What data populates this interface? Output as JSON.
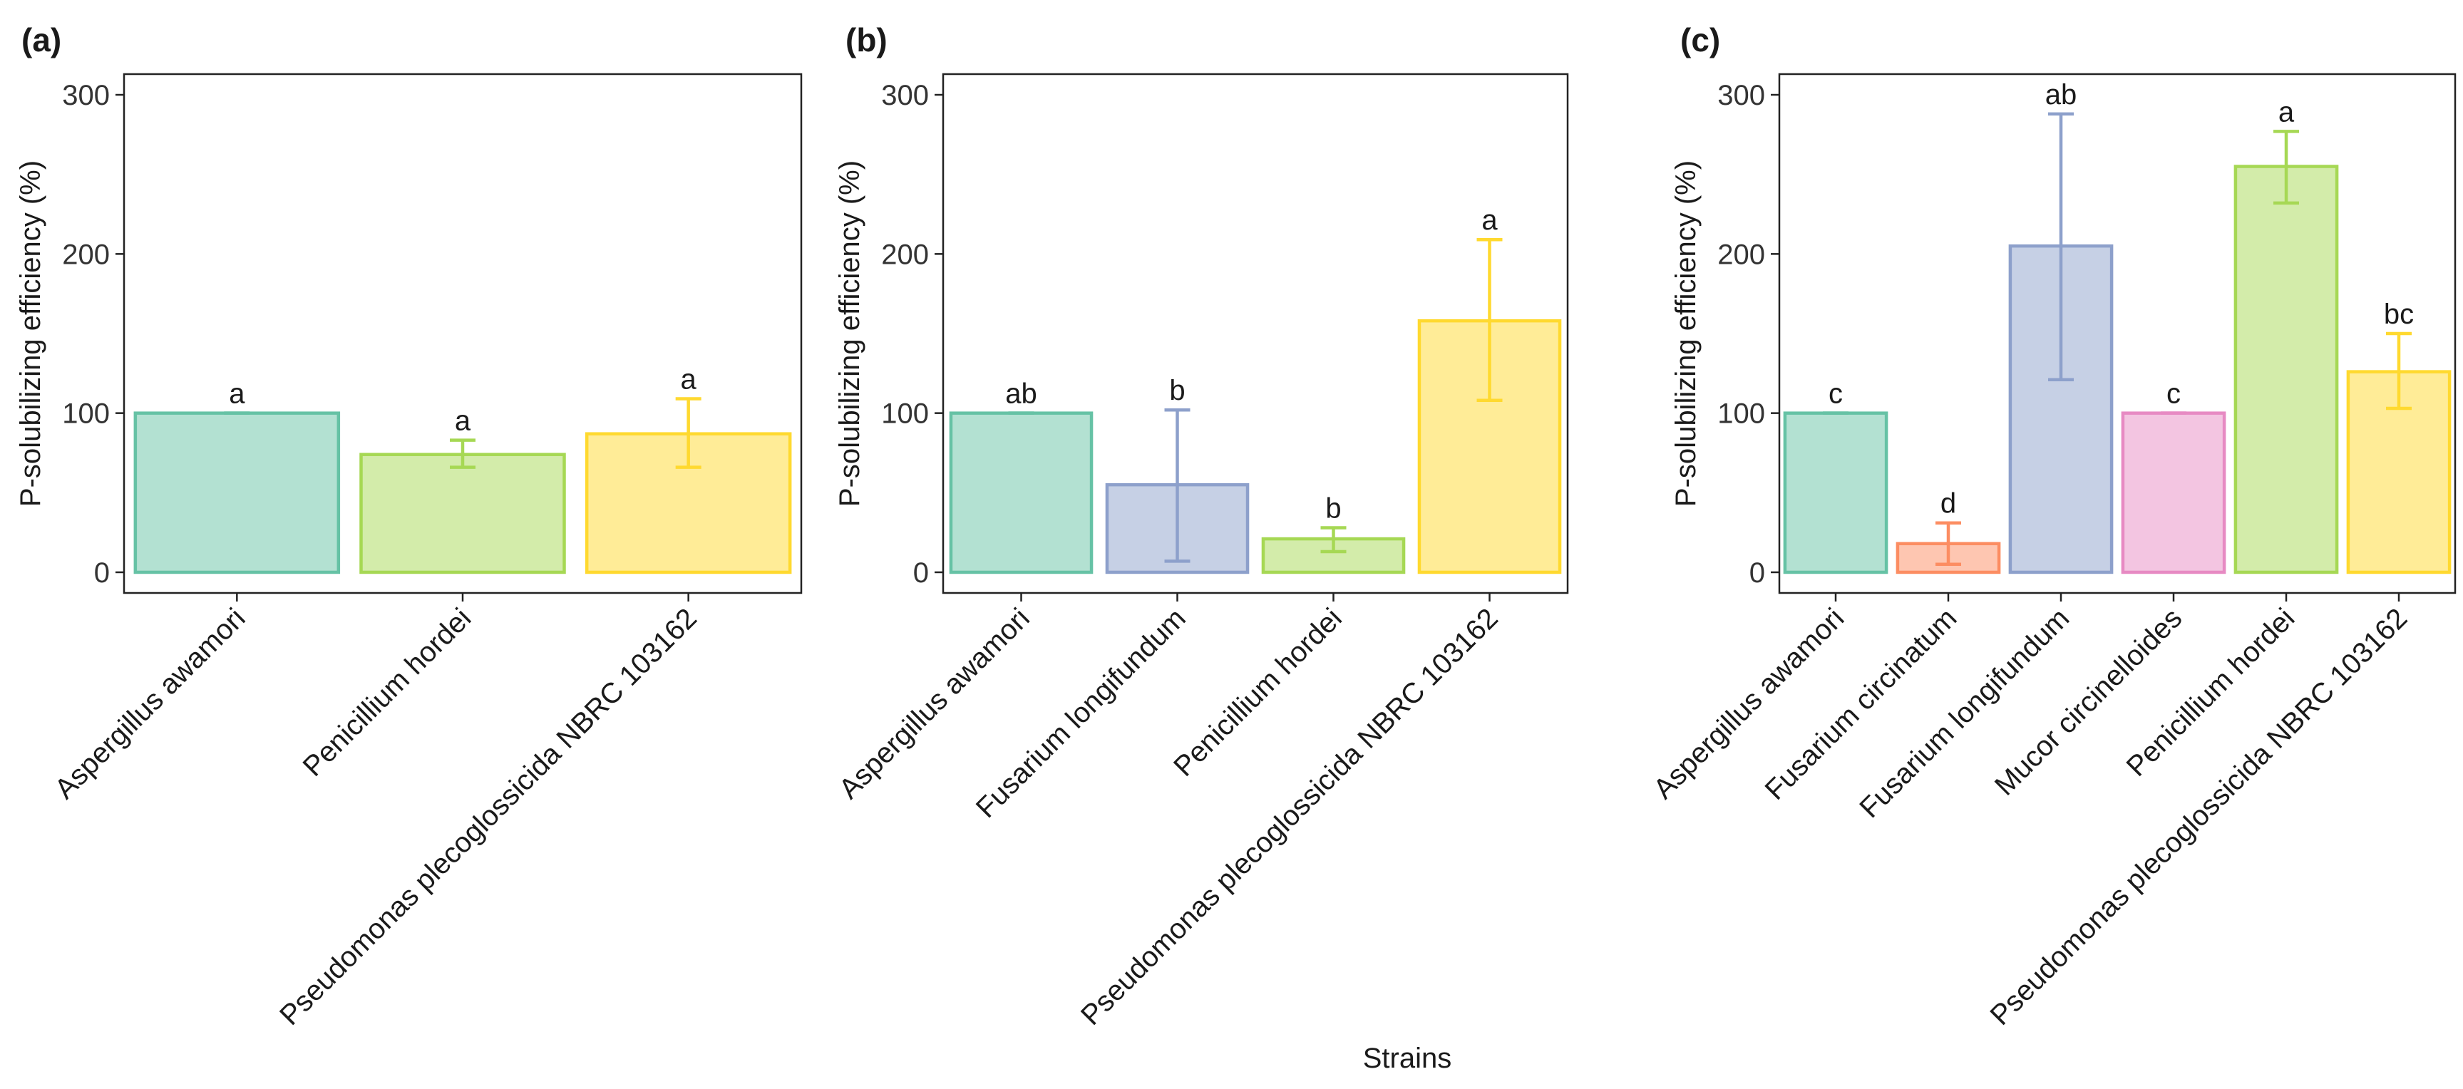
{
  "x_axis_title": "Strains",
  "chart_data": [
    {
      "type": "bar",
      "panel_label": "(a)",
      "ylabel": "P-solubilizing efficiency (%)",
      "xlabel": "",
      "ylim": [
        -13,
        313
      ],
      "yticks": [
        0,
        100,
        200,
        300
      ],
      "categories": [
        "Aspergillus awamori",
        "Penicillium hordei",
        "Pseudomonas plecoglossicida NBRC 103162"
      ],
      "values": [
        100,
        74,
        87
      ],
      "error_low": [
        100,
        66,
        66
      ],
      "error_high": [
        100,
        83,
        109
      ],
      "significance": [
        "a",
        "a",
        "a"
      ],
      "colors": [
        "#66c2a5",
        "#a6d854",
        "#ffd92f"
      ]
    },
    {
      "type": "bar",
      "panel_label": "(b)",
      "ylabel": "P-solubilizing efficiency (%)",
      "xlabel": "",
      "ylim": [
        -13,
        313
      ],
      "yticks": [
        0,
        100,
        200,
        300
      ],
      "categories": [
        "Aspergillus awamori",
        "Fusarium longifundum",
        "Penicillium hordei",
        "Pseudomonas plecoglossicida NBRC 103162"
      ],
      "values": [
        100,
        55,
        21,
        158
      ],
      "error_low": [
        100,
        7,
        13,
        108
      ],
      "error_high": [
        100,
        102,
        28,
        209
      ],
      "significance": [
        "ab",
        "b",
        "b",
        "a"
      ],
      "colors": [
        "#66c2a5",
        "#8da0cb",
        "#a6d854",
        "#ffd92f"
      ]
    },
    {
      "type": "bar",
      "panel_label": "(c)",
      "ylabel": "P-solubilizing efficiency (%)",
      "xlabel": "",
      "ylim": [
        -13,
        313
      ],
      "yticks": [
        0,
        100,
        200,
        300
      ],
      "categories": [
        "Aspergillus awamori",
        "Fusarium circinatum",
        "Fusarium longifundum",
        "Mucor circinelloides",
        "Penicillium hordei",
        "Pseudomonas plecoglossicida NBRC 103162"
      ],
      "values": [
        100,
        18,
        205,
        100,
        255,
        126
      ],
      "error_low": [
        100,
        5,
        121,
        100,
        232,
        103
      ],
      "error_high": [
        100,
        31,
        288,
        100,
        277,
        150
      ],
      "significance": [
        "c",
        "d",
        "ab",
        "c",
        "a",
        "bc"
      ],
      "colors": [
        "#66c2a5",
        "#fc8d62",
        "#8da0cb",
        "#e78ac3",
        "#a6d854",
        "#ffd92f"
      ]
    }
  ]
}
